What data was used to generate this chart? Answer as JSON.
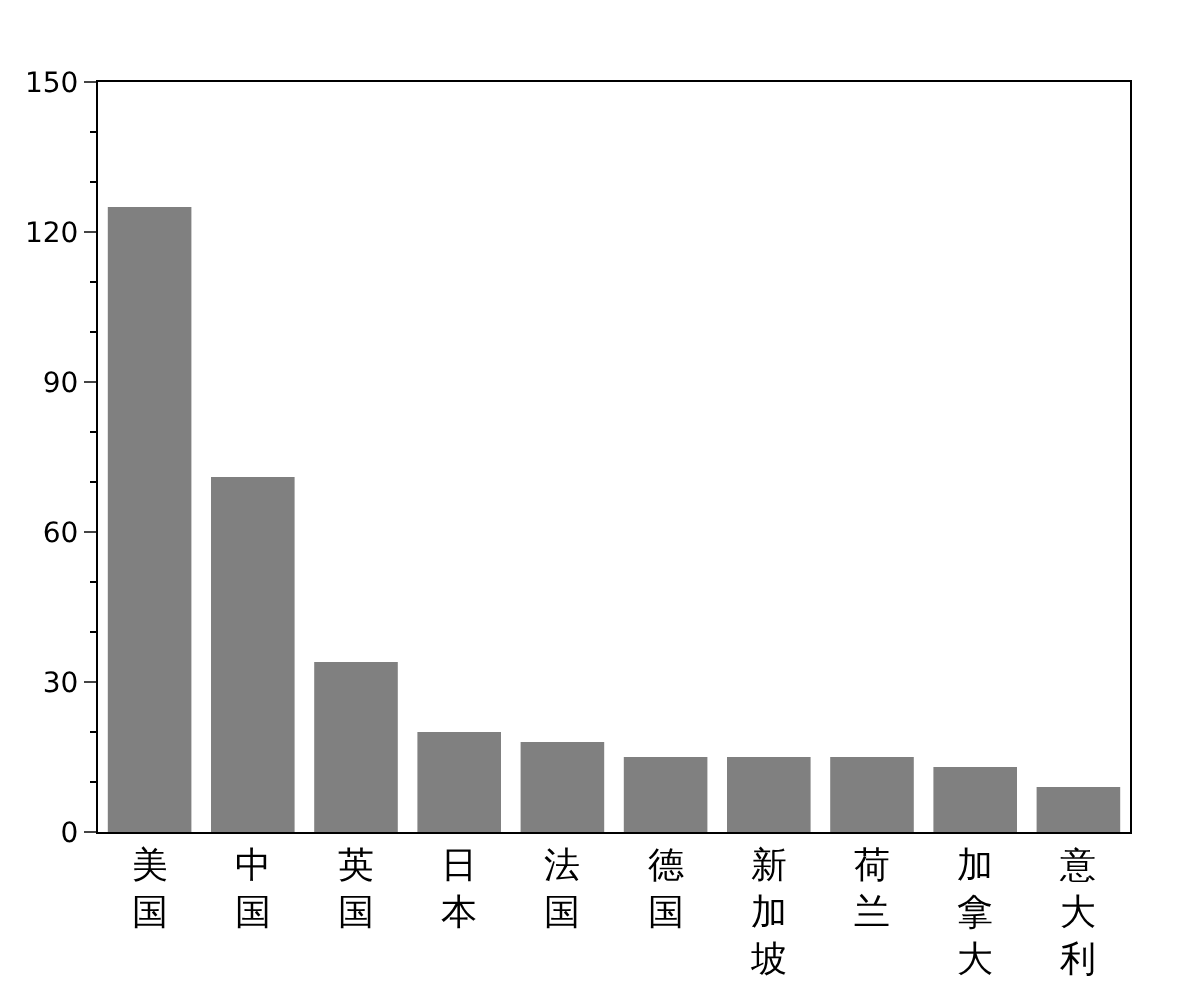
{
  "chart_data": {
    "type": "bar",
    "categories": [
      "美国",
      "中国",
      "英国",
      "日本",
      "法国",
      "德国",
      "新加坡",
      "荷兰",
      "加拿大",
      "意大利"
    ],
    "values": [
      125,
      71,
      34,
      20,
      18,
      15,
      15,
      15,
      13,
      9
    ],
    "color": "#808080",
    "ylim": [
      0,
      150
    ],
    "yticks": [
      0,
      30,
      60,
      90,
      120,
      150
    ]
  }
}
